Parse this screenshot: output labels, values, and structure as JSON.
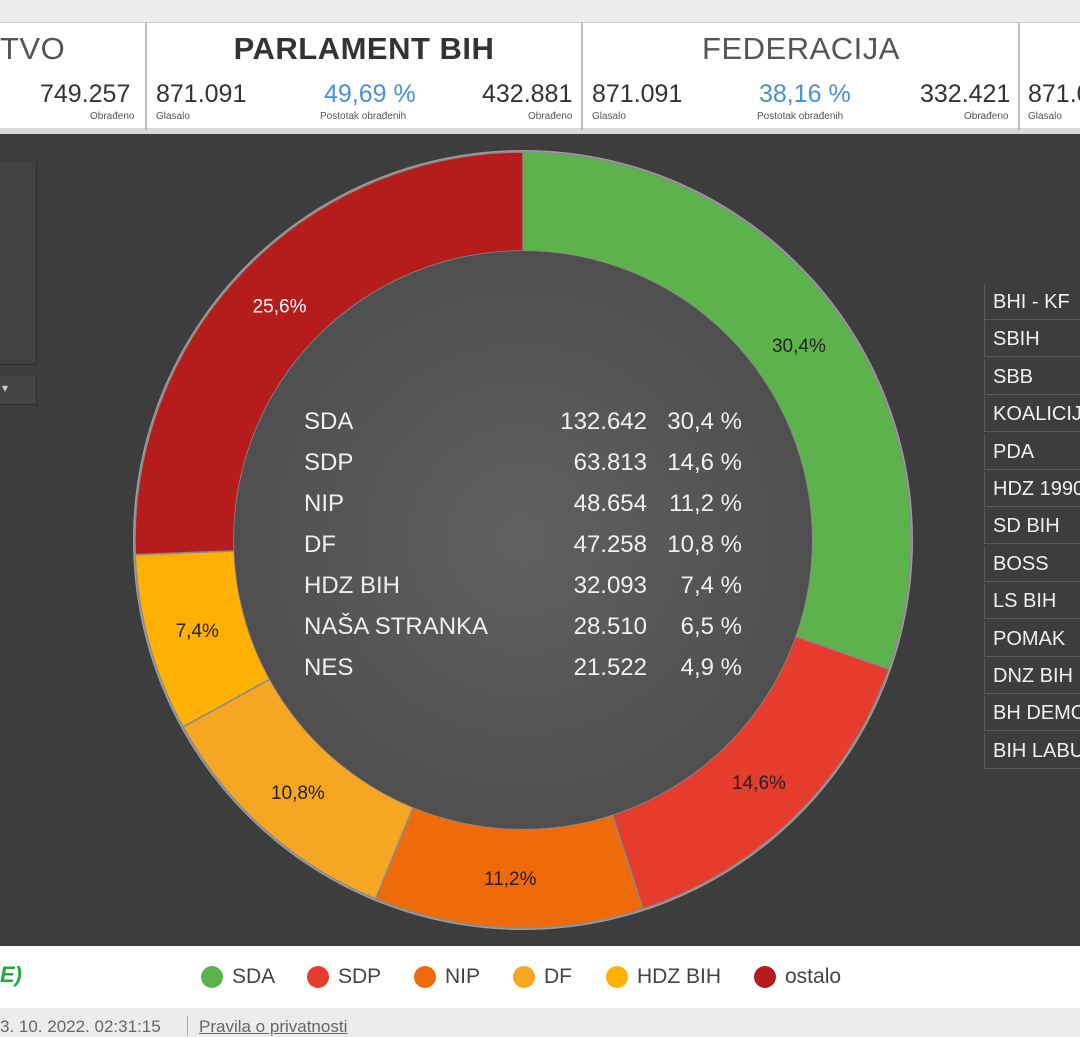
{
  "header": {
    "tabs": [
      {
        "label": "TVO"
      },
      {
        "label": "PARLAMENT BIH",
        "active": true
      },
      {
        "label": "FEDERACIJA"
      }
    ]
  },
  "stats": {
    "left": {
      "processed": "749.257",
      "processed_label": "Obrađeno"
    },
    "parlament": {
      "voted": "871.091",
      "voted_label": "Glasalo",
      "percent": "49,69 %",
      "percent_label": "Postotak obrađenih",
      "processed": "432.881",
      "processed_label": "Obrađeno"
    },
    "federacija": {
      "voted": "871.091",
      "voted_label": "Glasalo",
      "percent": "38,16 %",
      "percent_label": "Postotak obrađenih",
      "processed": "332.421",
      "processed_label": "Obrađeno"
    },
    "right": {
      "voted": "871.0",
      "voted_label": "Glasalo"
    }
  },
  "chart_data": {
    "type": "pie",
    "donut": true,
    "slices": [
      {
        "name": "SDA",
        "value": 30.4,
        "label": "30,4%",
        "color": "#5cb34b"
      },
      {
        "name": "SDP",
        "value": 14.6,
        "label": "14,6%",
        "color": "#e53c2e"
      },
      {
        "name": "NIP",
        "value": 11.2,
        "label": "11,2%",
        "color": "#ef6b0a"
      },
      {
        "name": "DF",
        "value": 10.8,
        "label": "10,8%",
        "color": "#f5a623"
      },
      {
        "name": "HDZ BIH",
        "value": 7.4,
        "label": "7,4%",
        "color": "#ffb000"
      },
      {
        "name": "ostalo",
        "value": 25.6,
        "label": "25,6%",
        "color": "#b71c1c"
      }
    ],
    "center_table": [
      {
        "party": "SDA",
        "votes": "132.642",
        "percent": "30,4 %"
      },
      {
        "party": "SDP",
        "votes": "63.813",
        "percent": "14,6 %"
      },
      {
        "party": "NIP",
        "votes": "48.654",
        "percent": "11,2 %"
      },
      {
        "party": "DF",
        "votes": "47.258",
        "percent": "10,8 %"
      },
      {
        "party": "HDZ BIH",
        "votes": "32.093",
        "percent": "7,4 %"
      },
      {
        "party": "NAŠA STRANKA",
        "votes": "28.510",
        "percent": "6,5 %"
      },
      {
        "party": "NES",
        "votes": "21.522",
        "percent": "4,9 %"
      }
    ],
    "legend_placement": "bottom"
  },
  "right_list": [
    "BHI - KF",
    "SBIH",
    "SBB",
    "KOALICIJ",
    "PDA",
    "HDZ 1990",
    "SD BIH",
    "BOSS",
    "LS BIH",
    "POMAK",
    "DNZ BIH",
    "BH DEMO",
    "BIH LABU"
  ],
  "bottom": {
    "logo_fragment": "E)"
  },
  "footer": {
    "timestamp": "3. 10. 2022. 02:31:15",
    "privacy": "Pravila o privatnosti"
  }
}
